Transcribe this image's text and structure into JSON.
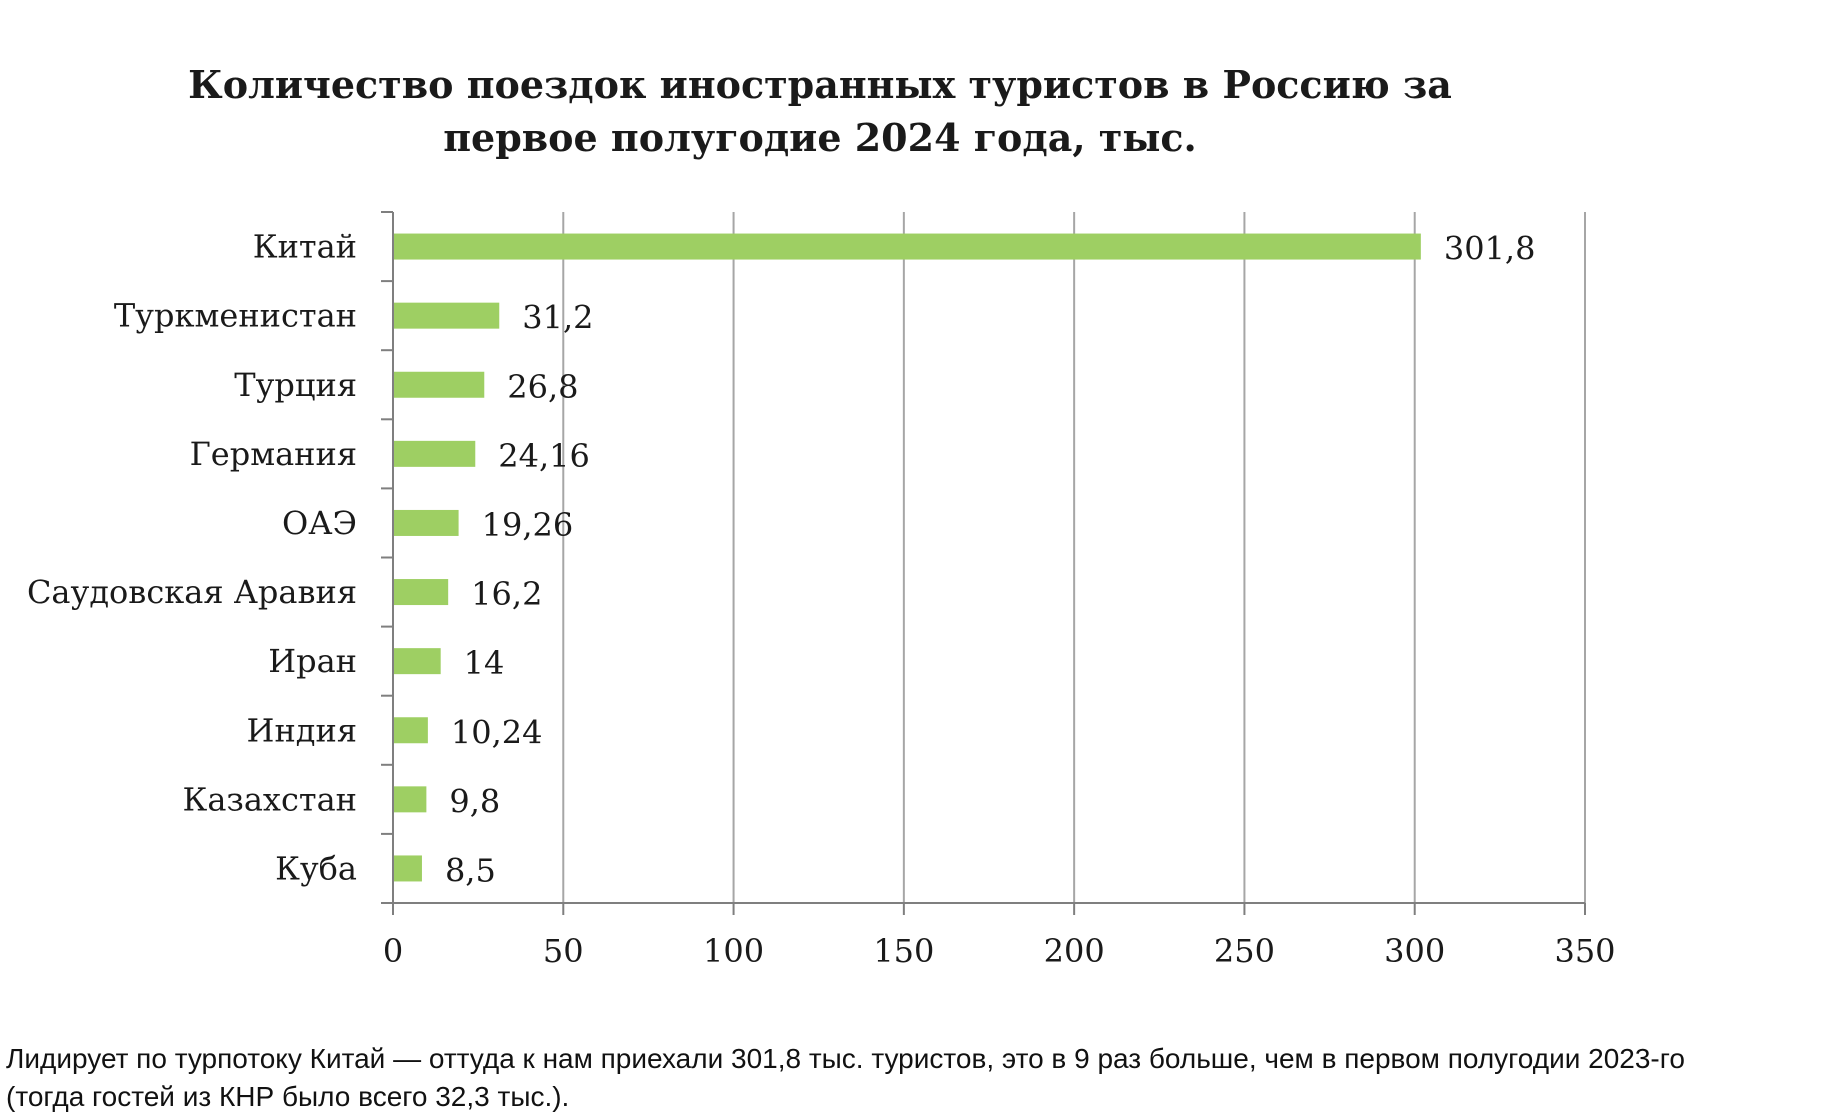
{
  "article": {
    "caption": "Лидирует по турпотоку Китай — оттуда к нам приехали 301,8 тыс. туристов, это в 9 раз больше, чем в первом полугодии 2023-го (тогда гостей из КНР было всего 32,3 тыс.)."
  },
  "chart_data": {
    "type": "bar",
    "orientation": "horizontal",
    "title": "Количество поездок иностранных туристов в Россию за первое полугодие 2024 года, тыс.",
    "categories": [
      "Китай",
      "Туркменистан",
      "Турция",
      "Германия",
      "ОАЭ",
      "Саудовская Аравия",
      "Иран",
      "Индия",
      "Казахстан",
      "Куба"
    ],
    "values": [
      301.8,
      31.2,
      26.8,
      24.16,
      19.26,
      16.2,
      14,
      10.24,
      9.8,
      8.5
    ],
    "data_labels": [
      "301,8",
      "31,2",
      "26,8",
      "24,16",
      "19,26",
      "16,2",
      "14",
      "10,24",
      "9,8",
      "8,5"
    ],
    "xlim": [
      0,
      350
    ],
    "xticks": [
      0,
      50,
      100,
      150,
      200,
      250,
      300,
      350
    ],
    "xlabel": "",
    "ylabel": "",
    "grid": "vertical",
    "legend": "none",
    "bar_color": "#9ecf63",
    "grid_color": "#a6a6a6",
    "axis_color": "#7f7f7f"
  }
}
